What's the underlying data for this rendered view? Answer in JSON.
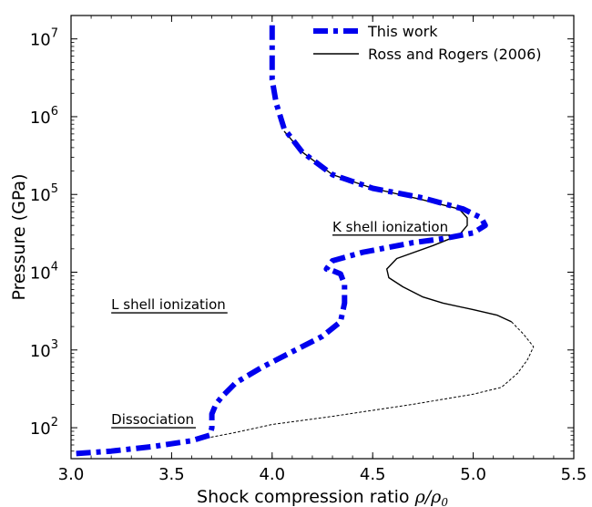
{
  "chart_data": {
    "type": "line",
    "xlabel": "Shock compression ratio",
    "xlabel_math": "ρ/ρ",
    "xlabel_sub": "0",
    "ylabel": "Pressure (GPa)",
    "xlim": [
      3.0,
      5.5
    ],
    "ylim": [
      40,
      20000000
    ],
    "yscale": "log",
    "x_ticks": [
      {
        "value": 3.0,
        "label": "3.0"
      },
      {
        "value": 3.5,
        "label": "3.5"
      },
      {
        "value": 4.0,
        "label": "4.0"
      },
      {
        "value": 4.5,
        "label": "4.5"
      },
      {
        "value": 5.0,
        "label": "5.0"
      },
      {
        "value": 5.5,
        "label": "5.5"
      }
    ],
    "y_ticks": [
      {
        "value": 100,
        "base": "10",
        "exp": "2"
      },
      {
        "value": 1000,
        "base": "10",
        "exp": "3"
      },
      {
        "value": 10000,
        "base": "10",
        "exp": "4"
      },
      {
        "value": 100000,
        "base": "10",
        "exp": "5"
      },
      {
        "value": 1000000,
        "base": "10",
        "exp": "6"
      },
      {
        "value": 10000000,
        "base": "10",
        "exp": "7"
      }
    ],
    "legend_position": "top-right",
    "series": [
      {
        "name": "This work",
        "color": "#0000ee",
        "style": "dashdot",
        "points": [
          [
            4.0,
            15000000
          ],
          [
            4.0,
            8000000
          ],
          [
            4.0,
            3000000
          ],
          [
            4.02,
            1500000
          ],
          [
            4.06,
            700000
          ],
          [
            4.15,
            350000
          ],
          [
            4.3,
            180000
          ],
          [
            4.5,
            120000
          ],
          [
            4.75,
            90000
          ],
          [
            4.95,
            65000
          ],
          [
            5.04,
            50000
          ],
          [
            5.06,
            40000
          ],
          [
            5.0,
            32000
          ],
          [
            4.85,
            27000
          ],
          [
            4.7,
            24000
          ],
          [
            4.45,
            18000
          ],
          [
            4.3,
            14000
          ],
          [
            4.27,
            11000
          ],
          [
            4.3,
            10500
          ],
          [
            4.34,
            9500
          ],
          [
            4.36,
            7000
          ],
          [
            4.36,
            4000
          ],
          [
            4.34,
            2300
          ],
          [
            4.25,
            1500
          ],
          [
            4.1,
            950
          ],
          [
            3.95,
            600
          ],
          [
            3.82,
            380
          ],
          [
            3.75,
            250
          ],
          [
            3.72,
            200
          ],
          [
            3.7,
            150
          ],
          [
            3.7,
            100
          ],
          [
            3.69,
            80
          ],
          [
            3.6,
            68
          ],
          [
            3.4,
            57
          ],
          [
            3.2,
            50
          ],
          [
            3.0,
            46
          ]
        ]
      },
      {
        "name": "Ross and Rogers (2006)",
        "color": "#000000",
        "style": "solid",
        "points": [
          [
            4.06,
            650000
          ],
          [
            4.15,
            350000
          ],
          [
            4.3,
            180000
          ],
          [
            4.5,
            120000
          ],
          [
            4.75,
            85000
          ],
          [
            4.93,
            65000
          ],
          [
            4.97,
            50000
          ],
          [
            4.97,
            40000
          ],
          [
            4.93,
            30000
          ],
          [
            4.8,
            22000
          ],
          [
            4.62,
            15000
          ],
          [
            4.57,
            11000
          ],
          [
            4.58,
            8500
          ],
          [
            4.65,
            6500
          ],
          [
            4.75,
            4800
          ],
          [
            4.85,
            4000
          ],
          [
            5.0,
            3300
          ],
          [
            5.12,
            2800
          ],
          [
            5.19,
            2300
          ]
        ]
      },
      {
        "name": "",
        "color": "#000000",
        "style": "dotted",
        "points": [
          [
            5.19,
            2300
          ],
          [
            5.25,
            1600
          ],
          [
            5.3,
            1100
          ],
          [
            5.27,
            750
          ],
          [
            5.22,
            500
          ],
          [
            5.14,
            330
          ],
          [
            5.0,
            270
          ],
          [
            4.7,
            200
          ],
          [
            4.3,
            140
          ],
          [
            4.0,
            110
          ],
          [
            3.8,
            85
          ],
          [
            3.69,
            75
          ]
        ]
      }
    ],
    "annotations": [
      {
        "text": "Dissociation",
        "x": 3.2,
        "y": 100
      },
      {
        "text": "L shell ionization",
        "x": 3.2,
        "y": 3000
      },
      {
        "text": "K shell ionization",
        "x": 4.3,
        "y": 30000
      }
    ]
  }
}
